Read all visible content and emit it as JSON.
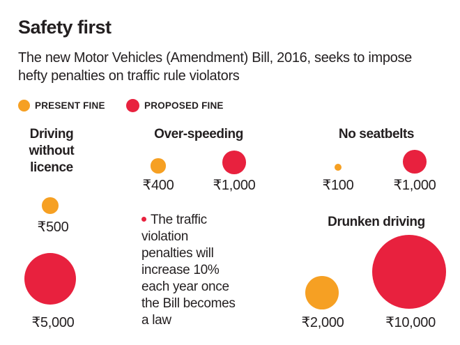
{
  "colors": {
    "present": "#f6a023",
    "proposed": "#e8213e"
  },
  "chart_data": {
    "type": "bubble",
    "title": "Safety first",
    "subtitle": "The new Motor Vehicles (Amendment) Bill, 2016, seeks to impose hefty penalties on traffic rule violators",
    "legend": {
      "placement": "top-left",
      "present": "PRESENT FINE",
      "proposed": "PROPOSED FINE"
    },
    "categories": [
      {
        "id": "licence",
        "name": "Driving without licence",
        "lines": [
          "Driving",
          "without",
          "licence"
        ],
        "present": 500,
        "proposed": 5000,
        "present_label": "₹500",
        "proposed_label": "₹5,000"
      },
      {
        "id": "speeding",
        "name": "Over-speeding",
        "lines": [
          "Over-speeding"
        ],
        "present": 400,
        "proposed": 1000,
        "present_label": "₹400",
        "proposed_label": "₹1,000"
      },
      {
        "id": "seatbelt",
        "name": "No seatbelts",
        "lines": [
          "No seatbelts"
        ],
        "present": 100,
        "proposed": 1000,
        "present_label": "₹100",
        "proposed_label": "₹1,000"
      },
      {
        "id": "drunken",
        "name": "Drunken driving",
        "lines": [
          "Drunken driving"
        ],
        "present": 2000,
        "proposed": 10000,
        "present_label": "₹2,000",
        "proposed_label": "₹10,000"
      }
    ],
    "annotation_lines": [
      "The traffic",
      "violation",
      "penalties will",
      "increase 10%",
      "each year once",
      "the Bill becomes",
      "a law"
    ]
  }
}
